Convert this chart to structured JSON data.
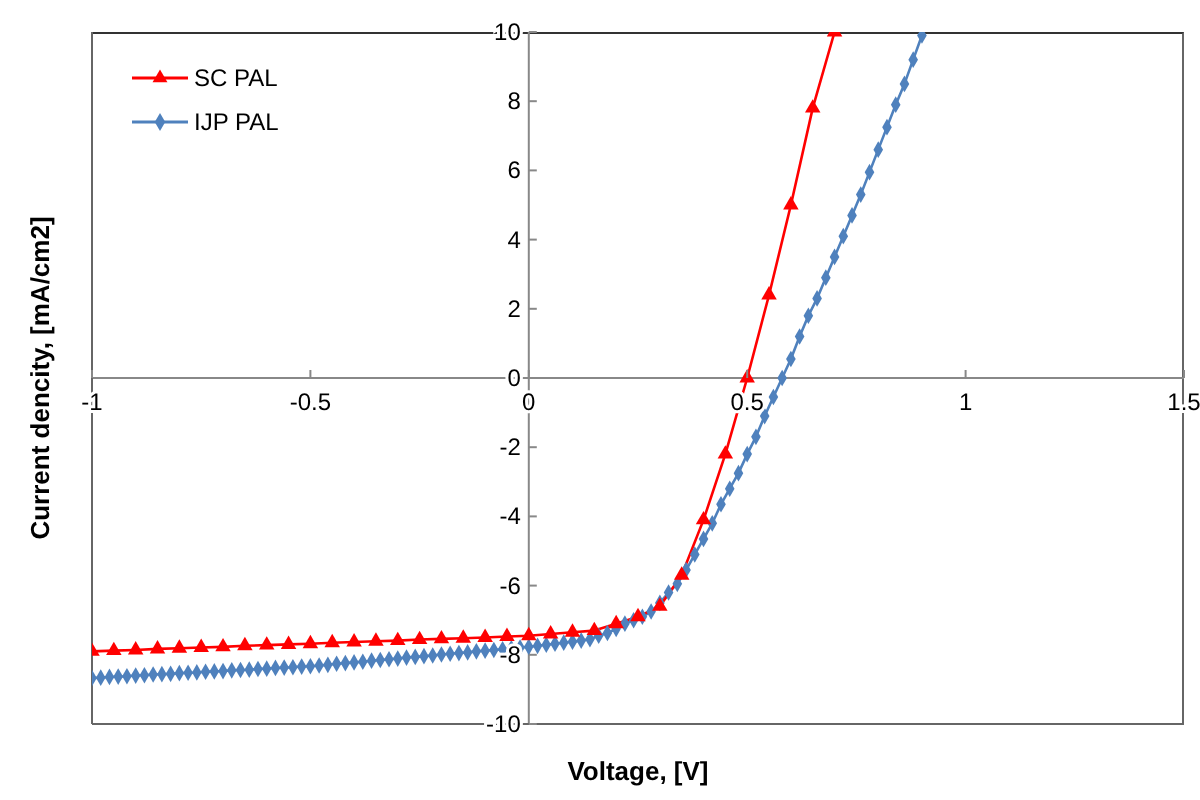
{
  "chart_data": {
    "type": "line",
    "xlabel": "Voltage, [V]",
    "ylabel": "Current dencity, [mA/cm2]",
    "xlim": [
      -1,
      1.5
    ],
    "xticks": [
      -1,
      -0.5,
      0,
      0.5,
      1,
      1.5
    ],
    "ylim": [
      -10,
      10
    ],
    "yticks": [
      -10,
      -8,
      -6,
      -4,
      -2,
      0,
      2,
      4,
      6,
      8,
      10
    ],
    "legend": "top left",
    "line_style": "solid",
    "series": [
      {
        "name": "SC PAL",
        "color": "#ff0000",
        "marker": "triangle",
        "x": [
          -1,
          -0.95,
          -0.9,
          -0.85,
          -0.8,
          -0.75,
          -0.7,
          -0.65,
          -0.6,
          -0.55,
          -0.5,
          -0.45,
          -0.4,
          -0.35,
          -0.3,
          -0.25,
          -0.2,
          -0.15,
          -0.1,
          -0.05,
          0,
          0.05,
          0.1,
          0.15,
          0.2,
          0.25,
          0.3,
          0.35,
          0.4,
          0.45,
          0.5,
          0.55,
          0.6,
          0.65,
          0.7
        ],
        "values": [
          -7.9,
          -7.88,
          -7.86,
          -7.83,
          -7.81,
          -7.79,
          -7.77,
          -7.74,
          -7.72,
          -7.7,
          -7.68,
          -7.65,
          -7.63,
          -7.61,
          -7.59,
          -7.56,
          -7.54,
          -7.52,
          -7.5,
          -7.47,
          -7.45,
          -7.4,
          -7.35,
          -7.3,
          -7.1,
          -6.9,
          -6.6,
          -5.7,
          -4.1,
          -2.2,
          0,
          2.4,
          5,
          7.8,
          10
        ]
      },
      {
        "name": "IJP PAL",
        "color": "#4f81bd",
        "marker": "diamond",
        "x": [
          -1,
          -0.98,
          -0.96,
          -0.94,
          -0.92,
          -0.9,
          -0.88,
          -0.86,
          -0.84,
          -0.82,
          -0.8,
          -0.78,
          -0.76,
          -0.74,
          -0.72,
          -0.7,
          -0.68,
          -0.66,
          -0.64,
          -0.62,
          -0.6,
          -0.58,
          -0.56,
          -0.54,
          -0.52,
          -0.5,
          -0.48,
          -0.46,
          -0.44,
          -0.42,
          -0.4,
          -0.38,
          -0.36,
          -0.34,
          -0.32,
          -0.3,
          -0.28,
          -0.26,
          -0.24,
          -0.22,
          -0.2,
          -0.18,
          -0.16,
          -0.14,
          -0.12,
          -0.1,
          -0.08,
          -0.06,
          -0.04,
          -0.02,
          0,
          0.02,
          0.04,
          0.06,
          0.08,
          0.1,
          0.12,
          0.14,
          0.16,
          0.18,
          0.2,
          0.22,
          0.24,
          0.26,
          0.28,
          0.3,
          0.32,
          0.34,
          0.36,
          0.38,
          0.4,
          0.42,
          0.44,
          0.46,
          0.48,
          0.5,
          0.52,
          0.54,
          0.56,
          0.58,
          0.6,
          0.62,
          0.64,
          0.66,
          0.68,
          0.7,
          0.72,
          0.74,
          0.76,
          0.78,
          0.8,
          0.82,
          0.84,
          0.86,
          0.88,
          0.9
        ],
        "values": [
          -8.67,
          -8.66,
          -8.64,
          -8.63,
          -8.62,
          -8.6,
          -8.59,
          -8.57,
          -8.56,
          -8.55,
          -8.53,
          -8.52,
          -8.51,
          -8.49,
          -8.48,
          -8.47,
          -8.45,
          -8.44,
          -8.43,
          -8.41,
          -8.4,
          -8.38,
          -8.37,
          -8.36,
          -8.34,
          -8.33,
          -8.31,
          -8.29,
          -8.26,
          -8.24,
          -8.22,
          -8.2,
          -8.17,
          -8.15,
          -8.13,
          -8.11,
          -8.08,
          -8.06,
          -8.04,
          -8.02,
          -7.99,
          -7.97,
          -7.95,
          -7.93,
          -7.9,
          -7.88,
          -7.86,
          -7.84,
          -7.81,
          -7.79,
          -7.77,
          -7.74,
          -7.71,
          -7.68,
          -7.65,
          -7.62,
          -7.59,
          -7.55,
          -7.45,
          -7.37,
          -7.25,
          -7.1,
          -7,
          -6.9,
          -6.75,
          -6.5,
          -6.2,
          -5.95,
          -5.55,
          -5.1,
          -4.65,
          -4.2,
          -3.65,
          -3.2,
          -2.75,
          -2.2,
          -1.7,
          -1.1,
          -0.55,
          0,
          0.55,
          1.2,
          1.8,
          2.3,
          2.9,
          3.5,
          4.1,
          4.7,
          5.3,
          5.95,
          6.6,
          7.25,
          7.9,
          8.5,
          9.2,
          9.9
        ]
      }
    ]
  }
}
